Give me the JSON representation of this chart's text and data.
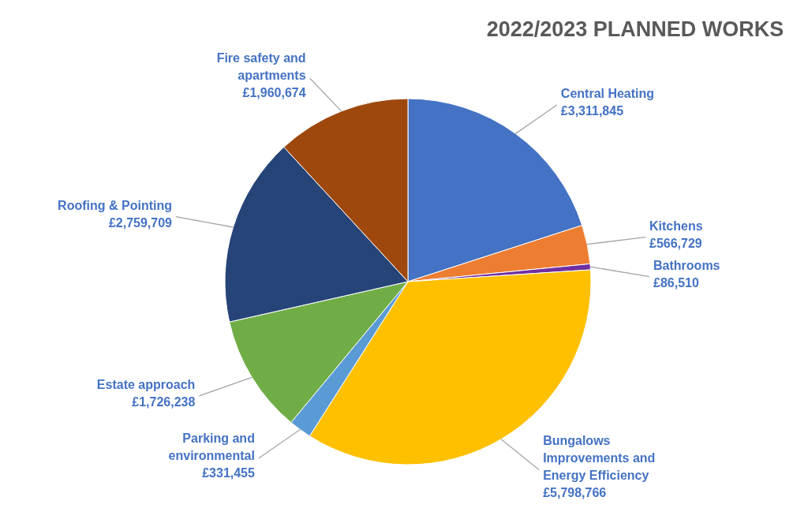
{
  "chart_data": {
    "type": "pie",
    "title": "2022/2023 PLANNED WORKS",
    "categories": [
      "Central Heating",
      "Kitchens",
      "Bathrooms",
      "Bungalows Improvements and Energy Efficiency",
      "Parking and environmental",
      "Estate approach",
      "Roofing & Pointing",
      "Fire safety and apartments"
    ],
    "values": [
      3311845,
      566729,
      86510,
      5798766,
      331455,
      1726238,
      2759709,
      1960674
    ],
    "colors": [
      "#4472c4",
      "#ed7d31",
      "#7030a0",
      "#ffc000",
      "#5b9bd5",
      "#70ad47",
      "#264478",
      "#9e480e"
    ],
    "value_labels": [
      "£3,311,845",
      "£566,729",
      "£86,510",
      "£5,798,766",
      "£331,455",
      "£1,726,238",
      "£2,759,709",
      "£1,960,674"
    ]
  }
}
